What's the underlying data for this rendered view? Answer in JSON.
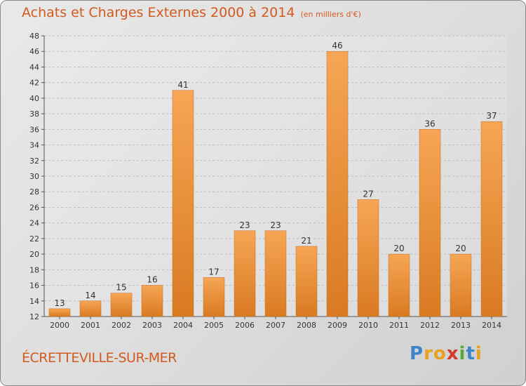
{
  "header": {
    "title": "Achats et Charges Externes 2000 à 2014",
    "unit": "(en milliers d'€)"
  },
  "footer": {
    "place": "ÉCRETTEVILLE-SUR-MER",
    "logo_letters": [
      "P",
      "r",
      "o",
      "x",
      "i",
      "t",
      "i"
    ],
    "logo_colors": [
      "#3a86c8",
      "#e8a020",
      "#e8a020",
      "#d33a2a",
      "#5aa83a",
      "#3a86c8",
      "#e8a020"
    ]
  },
  "colors": {
    "bar_light": "#f6a655",
    "bar_dark": "#d97a22",
    "accent": "#d35a1e"
  },
  "chart_data": {
    "type": "bar",
    "categories": [
      "2000",
      "2001",
      "2002",
      "2003",
      "2004",
      "2005",
      "2006",
      "2007",
      "2008",
      "2009",
      "2010",
      "2011",
      "2012",
      "2013",
      "2014"
    ],
    "values": [
      13,
      14,
      15,
      16,
      41,
      17,
      23,
      23,
      21,
      46,
      27,
      20,
      36,
      20,
      37
    ],
    "title": "Achats et Charges Externes 2000 à 2014",
    "ylim": [
      12,
      48
    ],
    "yticks": [
      12,
      14,
      16,
      18,
      20,
      22,
      24,
      26,
      28,
      30,
      32,
      34,
      36,
      38,
      40,
      42,
      44,
      46,
      48
    ],
    "grid": true
  }
}
